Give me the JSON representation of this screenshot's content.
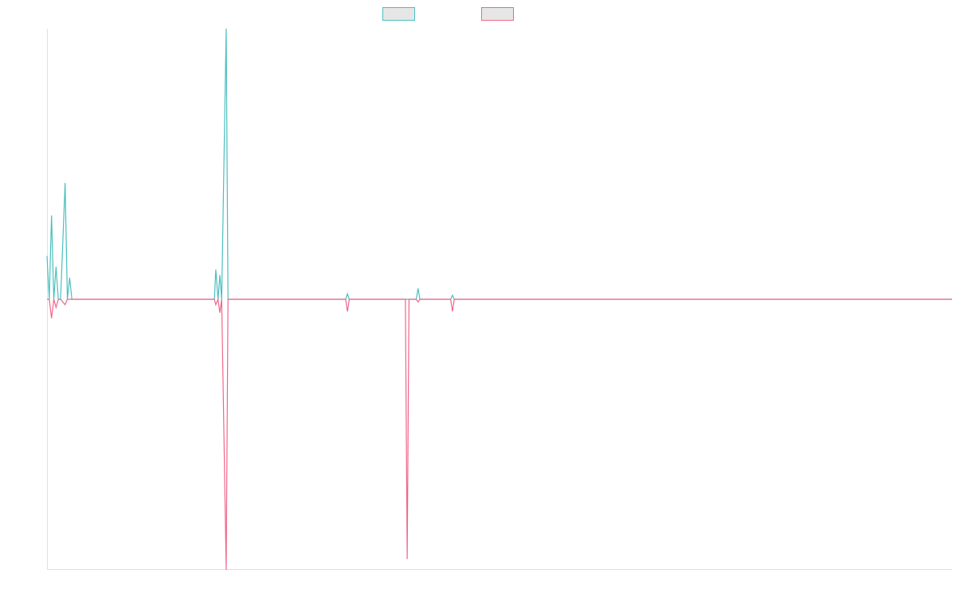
{
  "chart_data": {
    "type": "line",
    "x": [
      0,
      0.5,
      1,
      1.5,
      2,
      2.5,
      3,
      4,
      4.5,
      5,
      5.5,
      37,
      37.3,
      37.8,
      38.2,
      38.6,
      39.6,
      40,
      66,
      66.4,
      66.8,
      79.2,
      79.6,
      80,
      81.6,
      82,
      82.4,
      89.2,
      89.6,
      90,
      200
    ],
    "series": [
      {
        "color": "#4bbfbf",
        "values": [
          0.16,
          0,
          0.31,
          0,
          0.12,
          0,
          0,
          0.43,
          0,
          0.08,
          0,
          0,
          0.11,
          0,
          0.09,
          0,
          1.0,
          0,
          0,
          0.02,
          0,
          0,
          0,
          0,
          0,
          0.04,
          0,
          0,
          0.015,
          0,
          0
        ]
      },
      {
        "color": "#f0668a",
        "values": [
          0,
          0,
          -0.07,
          0,
          -0.03,
          0,
          0,
          -0.02,
          0,
          0,
          0,
          0,
          -0.02,
          0,
          -0.05,
          0,
          -1.0,
          0,
          0,
          -0.045,
          0,
          0,
          -0.96,
          0,
          0,
          -0.01,
          0,
          0,
          -0.045,
          0,
          0
        ]
      }
    ],
    "xlim": [
      0,
      200
    ],
    "ylim": [
      -1,
      1
    ],
    "grid": false,
    "legend": "top"
  }
}
